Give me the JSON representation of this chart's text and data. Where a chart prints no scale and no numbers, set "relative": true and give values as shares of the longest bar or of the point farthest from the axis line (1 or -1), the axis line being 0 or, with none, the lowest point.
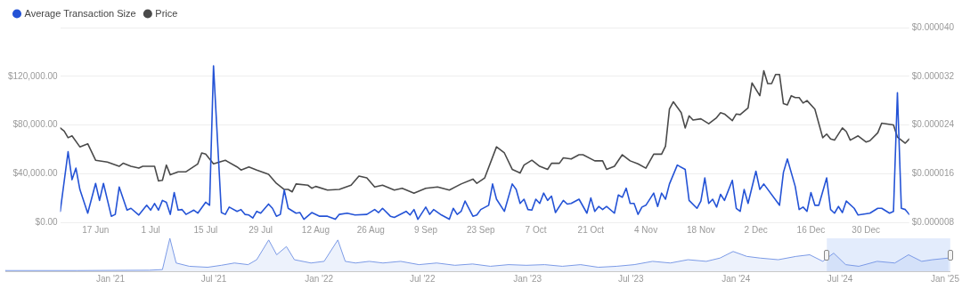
{
  "chart_data": [
    {
      "type": "line",
      "legend": "top left",
      "grid": "y",
      "marker": "none",
      "line_style": "solid",
      "xlim": [
        "2024-06-08",
        "2025-01-10"
      ],
      "xticks": [
        {
          "value": "2024-06-17",
          "label": "17 Jun"
        },
        {
          "value": "2024-07-01",
          "label": "1 Jul"
        },
        {
          "value": "2024-07-15",
          "label": "15 Jul"
        },
        {
          "value": "2024-07-29",
          "label": "29 Jul"
        },
        {
          "value": "2024-08-12",
          "label": "12 Aug"
        },
        {
          "value": "2024-08-26",
          "label": "26 Aug"
        },
        {
          "value": "2024-09-09",
          "label": "9 Sep"
        },
        {
          "value": "2024-09-23",
          "label": "23 Sep"
        },
        {
          "value": "2024-10-07",
          "label": "7 Oct"
        },
        {
          "value": "2024-10-21",
          "label": "21 Oct"
        },
        {
          "value": "2024-11-04",
          "label": "4 Nov"
        },
        {
          "value": "2024-11-18",
          "label": "18 Nov"
        },
        {
          "value": "2024-12-02",
          "label": "2 Dec"
        },
        {
          "value": "2024-12-16",
          "label": "16 Dec"
        },
        {
          "value": "2024-12-30",
          "label": "30 Dec"
        }
      ],
      "ylim": [
        0,
        160000
      ],
      "yticks": [
        {
          "value": 0,
          "label": "$0.00"
        },
        {
          "value": 40000,
          "label": "$40,000.00"
        },
        {
          "value": 80000,
          "label": "$80,000.00"
        },
        {
          "value": 120000,
          "label": "$120,000.00"
        },
        {
          "value": 160000,
          "label": null
        }
      ],
      "y2lim": [
        8e-06,
        4e-05
      ],
      "y2ticks": [
        {
          "value": 8e-06,
          "label": "$0.000008"
        },
        {
          "value": 1.6e-05,
          "label": "$0.000016"
        },
        {
          "value": 2.4e-05,
          "label": "$0.000024"
        },
        {
          "value": 3.2e-05,
          "label": "$0.000032"
        },
        {
          "value": 4e-05,
          "label": "$0.000040"
        }
      ],
      "series": [
        {
          "name": "Average Transaction Size",
          "color": "#2453d6",
          "x": [
            "2024-06-08",
            "2024-06-10",
            "2024-06-11",
            "2024-06-12",
            "2024-06-13",
            "2024-06-15",
            "2024-06-17",
            "2024-06-18",
            "2024-06-19",
            "2024-06-21",
            "2024-06-22",
            "2024-06-23",
            "2024-06-25",
            "2024-06-26",
            "2024-06-28",
            "2024-06-30",
            "2024-07-01",
            "2024-07-02",
            "2024-07-03",
            "2024-07-04",
            "2024-07-05",
            "2024-07-06",
            "2024-07-07",
            "2024-07-08",
            "2024-07-09",
            "2024-07-10",
            "2024-07-12",
            "2024-07-13",
            "2024-07-15",
            "2024-07-16",
            "2024-07-17",
            "2024-07-19",
            "2024-07-20",
            "2024-07-21",
            "2024-07-23",
            "2024-07-24",
            "2024-07-25",
            "2024-07-26",
            "2024-07-27",
            "2024-07-28",
            "2024-07-29",
            "2024-07-31",
            "2024-08-01",
            "2024-08-02",
            "2024-08-03",
            "2024-08-04",
            "2024-08-05",
            "2024-08-07",
            "2024-08-08",
            "2024-08-09",
            "2024-08-11",
            "2024-08-13",
            "2024-08-15",
            "2024-08-17",
            "2024-08-18",
            "2024-08-20",
            "2024-08-22",
            "2024-08-25",
            "2024-08-27",
            "2024-08-28",
            "2024-08-29",
            "2024-08-31",
            "2024-09-01",
            "2024-09-04",
            "2024-09-05",
            "2024-09-06",
            "2024-09-07",
            "2024-09-09",
            "2024-09-10",
            "2024-09-11",
            "2024-09-13",
            "2024-09-15",
            "2024-09-16",
            "2024-09-17",
            "2024-09-18",
            "2024-09-19",
            "2024-09-21",
            "2024-09-22",
            "2024-09-23",
            "2024-09-25",
            "2024-09-26",
            "2024-09-27",
            "2024-09-29",
            "2024-10-01",
            "2024-10-02",
            "2024-10-03",
            "2024-10-04",
            "2024-10-05",
            "2024-10-06",
            "2024-10-07",
            "2024-10-08",
            "2024-10-09",
            "2024-10-10",
            "2024-10-11",
            "2024-10-12",
            "2024-10-14",
            "2024-10-15",
            "2024-10-16",
            "2024-10-18",
            "2024-10-20",
            "2024-10-21",
            "2024-10-22",
            "2024-10-23",
            "2024-10-24",
            "2024-10-25",
            "2024-10-27",
            "2024-10-28",
            "2024-10-29",
            "2024-10-30",
            "2024-10-31",
            "2024-11-01",
            "2024-11-02",
            "2024-11-03",
            "2024-11-04",
            "2024-11-06",
            "2024-11-07",
            "2024-11-08",
            "2024-11-09",
            "2024-11-10",
            "2024-11-12",
            "2024-11-14",
            "2024-11-15",
            "2024-11-17",
            "2024-11-18",
            "2024-11-19",
            "2024-11-20",
            "2024-11-21",
            "2024-11-22",
            "2024-11-23",
            "2024-11-24",
            "2024-11-26",
            "2024-11-27",
            "2024-11-28",
            "2024-11-29",
            "2024-11-30",
            "2024-12-02",
            "2024-12-03",
            "2024-12-04",
            "2024-12-08",
            "2024-12-09",
            "2024-12-10",
            "2024-12-12",
            "2024-12-13",
            "2024-12-14",
            "2024-12-15",
            "2024-12-16",
            "2024-12-17",
            "2024-12-18",
            "2024-12-20",
            "2024-12-21",
            "2024-12-22",
            "2024-12-23",
            "2024-12-24",
            "2024-12-25",
            "2024-12-27",
            "2024-12-28",
            "2024-12-31",
            "2025-01-02",
            "2025-01-03",
            "2025-01-05",
            "2025-01-06",
            "2025-01-07",
            "2025-01-08",
            "2025-01-09",
            "2025-01-10"
          ],
          "values": [
            9000,
            58000,
            35000,
            44500,
            27000,
            7500,
            32000,
            18000,
            32000,
            5000,
            6500,
            29000,
            10000,
            11500,
            6000,
            14000,
            10000,
            15500,
            10000,
            18000,
            16500,
            6500,
            24500,
            10000,
            10500,
            6500,
            10000,
            7500,
            16500,
            14000,
            128500,
            8000,
            6500,
            12500,
            9000,
            10500,
            6500,
            6000,
            3500,
            9000,
            7500,
            15000,
            11500,
            5000,
            6500,
            26500,
            11500,
            7500,
            8000,
            2500,
            8000,
            5000,
            5000,
            2500,
            6500,
            7500,
            6000,
            6500,
            10500,
            8000,
            11500,
            5000,
            4000,
            9000,
            6000,
            10500,
            2500,
            12500,
            6500,
            10500,
            6000,
            2500,
            11500,
            6500,
            9000,
            17500,
            5000,
            6000,
            10500,
            14000,
            31500,
            19000,
            9000,
            31500,
            27000,
            15500,
            19000,
            10500,
            10000,
            19000,
            15500,
            24000,
            18000,
            21500,
            8000,
            18000,
            15000,
            15500,
            19000,
            7500,
            20000,
            9000,
            13000,
            10500,
            13000,
            7500,
            22500,
            20500,
            28000,
            15500,
            15500,
            6500,
            12500,
            14000,
            24000,
            13000,
            24000,
            19000,
            31500,
            47000,
            43500,
            18000,
            11500,
            17500,
            36500,
            15500,
            19000,
            12500,
            23000,
            18000,
            34500,
            11500,
            9000,
            27000,
            15500,
            42000,
            27000,
            31500,
            14000,
            41000,
            52000,
            29500,
            10500,
            12500,
            9000,
            24500,
            14000,
            14000,
            36500,
            10500,
            7500,
            13000,
            8000,
            17500,
            11500,
            6000,
            7500,
            11500,
            11500,
            7500,
            9000,
            106500,
            11500,
            10500,
            6500
          ]
        },
        {
          "name": "Price",
          "color": "#4a4a4a",
          "axis": "y2",
          "x": [
            "2024-06-08",
            "2024-06-09",
            "2024-06-10",
            "2024-06-11",
            "2024-06-13",
            "2024-06-15",
            "2024-06-17",
            "2024-06-20",
            "2024-06-23",
            "2024-06-24",
            "2024-06-26",
            "2024-06-28",
            "2024-06-29",
            "2024-07-02",
            "2024-07-03",
            "2024-07-04",
            "2024-07-05",
            "2024-07-06",
            "2024-07-08",
            "2024-07-10",
            "2024-07-13",
            "2024-07-14",
            "2024-07-15",
            "2024-07-17",
            "2024-07-20",
            "2024-07-23",
            "2024-07-24",
            "2024-07-26",
            "2024-07-28",
            "2024-07-31",
            "2024-08-02",
            "2024-08-04",
            "2024-08-05",
            "2024-08-06",
            "2024-08-07",
            "2024-08-10",
            "2024-08-11",
            "2024-08-12",
            "2024-08-15",
            "2024-08-18",
            "2024-08-21",
            "2024-08-23",
            "2024-08-25",
            "2024-08-27",
            "2024-08-29",
            "2024-09-01",
            "2024-09-03",
            "2024-09-06",
            "2024-09-09",
            "2024-09-12",
            "2024-09-15",
            "2024-09-18",
            "2024-09-21",
            "2024-09-22",
            "2024-09-24",
            "2024-09-27",
            "2024-09-29",
            "2024-10-01",
            "2024-10-03",
            "2024-10-04",
            "2024-10-06",
            "2024-10-08",
            "2024-10-10",
            "2024-10-11",
            "2024-10-13",
            "2024-10-14",
            "2024-10-16",
            "2024-10-18",
            "2024-10-19",
            "2024-10-22",
            "2024-10-24",
            "2024-10-25",
            "2024-10-27",
            "2024-10-29",
            "2024-10-31",
            "2024-11-02",
            "2024-11-04",
            "2024-11-06",
            "2024-11-08",
            "2024-11-09",
            "2024-11-10",
            "2024-11-11",
            "2024-11-13",
            "2024-11-14",
            "2024-11-15",
            "2024-11-16",
            "2024-11-18",
            "2024-11-20",
            "2024-11-22",
            "2024-11-23",
            "2024-11-24",
            "2024-11-26",
            "2024-11-27",
            "2024-11-28",
            "2024-11-30",
            "2024-12-01",
            "2024-12-03",
            "2024-12-04",
            "2024-12-05",
            "2024-12-06",
            "2024-12-07",
            "2024-12-08",
            "2024-12-09",
            "2024-12-10",
            "2024-12-11",
            "2024-12-12",
            "2024-12-13",
            "2024-12-14",
            "2024-12-15",
            "2024-12-17",
            "2024-12-19",
            "2024-12-20",
            "2024-12-21",
            "2024-12-22",
            "2024-12-24",
            "2024-12-25",
            "2024-12-26",
            "2024-12-28",
            "2024-12-30",
            "2024-12-31",
            "2025-01-02",
            "2025-01-03",
            "2025-01-06",
            "2025-01-07",
            "2025-01-09",
            "2025-01-10"
          ],
          "values": [
            2.35e-05,
            2.3e-05,
            2.19e-05,
            2.22e-05,
            2.04e-05,
            2.09e-05,
            1.82e-05,
            1.79e-05,
            1.72e-05,
            1.77e-05,
            1.72e-05,
            1.69e-05,
            1.72e-05,
            1.72e-05,
            1.48e-05,
            1.49e-05,
            1.74e-05,
            1.58e-05,
            1.63e-05,
            1.63e-05,
            1.76e-05,
            1.94e-05,
            1.92e-05,
            1.76e-05,
            1.82e-05,
            1.71e-05,
            1.66e-05,
            1.71e-05,
            1.66e-05,
            1.59e-05,
            1.44e-05,
            1.34e-05,
            1.34e-05,
            1.3e-05,
            1.43e-05,
            1.41e-05,
            1.36e-05,
            1.39e-05,
            1.33e-05,
            1.34e-05,
            1.41e-05,
            1.56e-05,
            1.53e-05,
            1.38e-05,
            1.41e-05,
            1.33e-05,
            1.36e-05,
            1.28e-05,
            1.36e-05,
            1.38e-05,
            1.33e-05,
            1.43e-05,
            1.51e-05,
            1.44e-05,
            1.53e-05,
            2.04e-05,
            1.94e-05,
            1.67e-05,
            1.61e-05,
            1.74e-05,
            1.82e-05,
            1.72e-05,
            1.67e-05,
            1.77e-05,
            1.77e-05,
            1.86e-05,
            1.84e-05,
            1.91e-05,
            1.91e-05,
            1.81e-05,
            1.81e-05,
            1.67e-05,
            1.72e-05,
            1.91e-05,
            1.81e-05,
            1.76e-05,
            1.69e-05,
            1.92e-05,
            1.92e-05,
            2.05e-05,
            2.66e-05,
            2.78e-05,
            2.6e-05,
            2.35e-05,
            2.55e-05,
            2.48e-05,
            2.5e-05,
            2.42e-05,
            2.52e-05,
            2.6e-05,
            2.58e-05,
            2.47e-05,
            2.58e-05,
            2.57e-05,
            2.68e-05,
            3.09e-05,
            2.88e-05,
            3.29e-05,
            3.08e-05,
            3.08e-05,
            3.23e-05,
            3.23e-05,
            2.75e-05,
            2.73e-05,
            2.88e-05,
            2.85e-05,
            2.85e-05,
            2.76e-05,
            2.8e-05,
            2.66e-05,
            2.19e-05,
            2.25e-05,
            2.17e-05,
            2.15e-05,
            2.35e-05,
            2.29e-05,
            2.15e-05,
            2.22e-05,
            2.12e-05,
            2.14e-05,
            2.27e-05,
            2.43e-05,
            2.4e-05,
            2.2e-05,
            2.1e-05,
            2.17e-05
          ]
        }
      ]
    },
    {
      "type": "area",
      "relative": true,
      "tick_labels": "x",
      "xlim": [
        "2020-07-01",
        "2025-01-10"
      ],
      "xticks": [
        {
          "value": "2021-01-01",
          "label": "Jan '21"
        },
        {
          "value": "2021-07-01",
          "label": "Jul '21"
        },
        {
          "value": "2022-01-01",
          "label": "Jan '22"
        },
        {
          "value": "2022-07-01",
          "label": "Jul '22"
        },
        {
          "value": "2023-01-01",
          "label": "Jan '23"
        },
        {
          "value": "2023-07-01",
          "label": "Jul '23"
        },
        {
          "value": "2024-01-01",
          "label": "Jan '24"
        },
        {
          "value": "2024-07-01",
          "label": "Jul '24"
        },
        {
          "value": "2025-01-01",
          "label": "Jan '25"
        }
      ],
      "bands": [
        {
          "axis": "x",
          "from": "2024-06-08",
          "to": "2025-01-10",
          "color": "#e3ecfc"
        }
      ],
      "series": [
        {
          "color": "#7b9ae6",
          "x": [
            "2020-07-01",
            "2020-11-04",
            "2021-03-10",
            "2021-04-02",
            "2021-04-15",
            "2021-04-26",
            "2021-05-19",
            "2021-06-20",
            "2021-07-14",
            "2021-08-06",
            "2021-08-30",
            "2021-09-14",
            "2021-10-05",
            "2021-10-19",
            "2021-11-05",
            "2021-11-19",
            "2021-12-18",
            "2022-01-10",
            "2022-02-03",
            "2022-02-16",
            "2022-03-06",
            "2022-03-30",
            "2022-04-23",
            "2022-05-24",
            "2022-06-25",
            "2022-07-26",
            "2022-08-27",
            "2022-09-27",
            "2022-10-28",
            "2022-11-29",
            "2022-12-30",
            "2023-01-31",
            "2023-03-03",
            "2023-04-04",
            "2023-05-05",
            "2023-06-06",
            "2023-07-07",
            "2023-08-08",
            "2023-09-08",
            "2023-10-09",
            "2023-11-10",
            "2023-12-04",
            "2023-12-27",
            "2024-01-20",
            "2024-02-12",
            "2024-03-15",
            "2024-04-15",
            "2024-05-09",
            "2024-06-01",
            "2024-06-20",
            "2024-07-11",
            "2024-08-03",
            "2024-09-04",
            "2024-10-05",
            "2024-10-29",
            "2024-11-21",
            "2024-12-10",
            "2025-01-07"
          ],
          "values": [
            0.02,
            0.02,
            0.03,
            0.05,
            1,
            0.25,
            0.15,
            0.12,
            0.18,
            0.25,
            0.2,
            0.35,
            0.95,
            0.5,
            0.75,
            0.35,
            0.25,
            0.3,
            0.95,
            0.3,
            0.25,
            0.3,
            0.25,
            0.3,
            0.2,
            0.25,
            0.18,
            0.22,
            0.15,
            0.2,
            0.18,
            0.2,
            0.15,
            0.2,
            0.12,
            0.15,
            0.2,
            0.3,
            0.25,
            0.35,
            0.3,
            0.4,
            0.6,
            0.45,
            0.4,
            0.35,
            0.45,
            0.5,
            0.3,
            0.55,
            0.2,
            0.15,
            0.3,
            0.25,
            0.5,
            0.3,
            0.35,
            0.4
          ]
        }
      ]
    }
  ]
}
